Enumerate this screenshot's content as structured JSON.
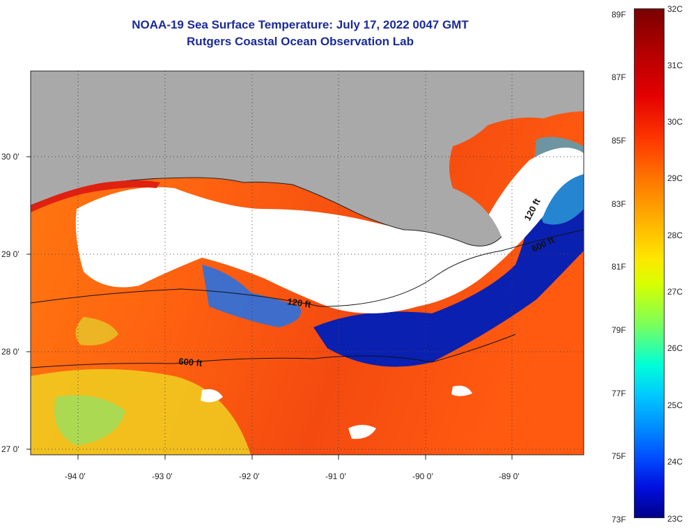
{
  "header": {
    "title": "NOAA-19 Sea Surface Temperature:  July 17, 2022 0047 GMT",
    "subtitle": "Rutgers Coastal Ocean Observation Lab"
  },
  "axes": {
    "lat_labels": [
      "30 0'",
      "29 0'",
      "28 0'",
      "27 0'"
    ],
    "lon_labels": [
      "-94 0'",
      "-93 0'",
      "-92 0'",
      "-91 0'",
      "-90 0'",
      "-89 0'"
    ]
  },
  "isobaths": {
    "shallow": "120 ft",
    "deep": "600 ft"
  },
  "colorbar": {
    "fahrenheit": [
      "89F",
      "87F",
      "85F",
      "83F",
      "81F",
      "79F",
      "77F",
      "75F",
      "73F"
    ],
    "celsius": [
      "32C",
      "31C",
      "30C",
      "29C",
      "28C",
      "27C",
      "26C",
      "25C",
      "24C",
      "23C"
    ]
  },
  "colors": {
    "land": "#a9a9a9",
    "cloud": "#ffffff",
    "title": "#1a2a9a"
  }
}
